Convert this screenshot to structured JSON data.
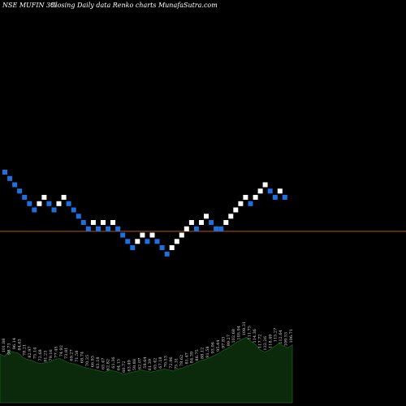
{
  "header": {
    "title": "NSE MUFIN  3%",
    "subtitle": "Closing Daily data  Renko  charts MunafaSutra.com"
  },
  "colors": {
    "background": "#000000",
    "up_brick": "#ffffff",
    "down_brick": "#1e6fe0",
    "reference_line": "#b8541a",
    "volume_fill": "#0b2a0b",
    "volume_line": "#1a5a1a"
  },
  "chart_data": {
    "type": "renko",
    "brick_size_percent": 3,
    "bricks": [
      {
        "dir": "down",
        "level": 25
      },
      {
        "dir": "down",
        "level": 24
      },
      {
        "dir": "down",
        "level": 23
      },
      {
        "dir": "down",
        "level": 22
      },
      {
        "dir": "down",
        "level": 21
      },
      {
        "dir": "down",
        "level": 20
      },
      {
        "dir": "down",
        "level": 19
      },
      {
        "dir": "up",
        "level": 20
      },
      {
        "dir": "up",
        "level": 21
      },
      {
        "dir": "down",
        "level": 20
      },
      {
        "dir": "down",
        "level": 19
      },
      {
        "dir": "up",
        "level": 20
      },
      {
        "dir": "up",
        "level": 21
      },
      {
        "dir": "down",
        "level": 20
      },
      {
        "dir": "down",
        "level": 19
      },
      {
        "dir": "down",
        "level": 18
      },
      {
        "dir": "down",
        "level": 17
      },
      {
        "dir": "down",
        "level": 16
      },
      {
        "dir": "up",
        "level": 17
      },
      {
        "dir": "down",
        "level": 16
      },
      {
        "dir": "up",
        "level": 17
      },
      {
        "dir": "down",
        "level": 16
      },
      {
        "dir": "up",
        "level": 17
      },
      {
        "dir": "down",
        "level": 16
      },
      {
        "dir": "down",
        "level": 15
      },
      {
        "dir": "down",
        "level": 14
      },
      {
        "dir": "down",
        "level": 13
      },
      {
        "dir": "up",
        "level": 14
      },
      {
        "dir": "up",
        "level": 15
      },
      {
        "dir": "down",
        "level": 14
      },
      {
        "dir": "up",
        "level": 15
      },
      {
        "dir": "down",
        "level": 14
      },
      {
        "dir": "down",
        "level": 13
      },
      {
        "dir": "down",
        "level": 12
      },
      {
        "dir": "up",
        "level": 13
      },
      {
        "dir": "up",
        "level": 14
      },
      {
        "dir": "up",
        "level": 15
      },
      {
        "dir": "up",
        "level": 16
      },
      {
        "dir": "up",
        "level": 17
      },
      {
        "dir": "down",
        "level": 16
      },
      {
        "dir": "up",
        "level": 17
      },
      {
        "dir": "up",
        "level": 18
      },
      {
        "dir": "down",
        "level": 17
      },
      {
        "dir": "down",
        "level": 16
      },
      {
        "dir": "down",
        "level": 16
      },
      {
        "dir": "up",
        "level": 17
      },
      {
        "dir": "up",
        "level": 18
      },
      {
        "dir": "up",
        "level": 19
      },
      {
        "dir": "up",
        "level": 20
      },
      {
        "dir": "up",
        "level": 21
      },
      {
        "dir": "down",
        "level": 20
      },
      {
        "dir": "up",
        "level": 21
      },
      {
        "dir": "up",
        "level": 22
      },
      {
        "dir": "up",
        "level": 23
      },
      {
        "dir": "down",
        "level": 22
      },
      {
        "dir": "down",
        "level": 21
      },
      {
        "dir": "up",
        "level": 22
      },
      {
        "dir": "down",
        "level": 21
      }
    ],
    "reference_line_level": 15.6,
    "volume": [
      46,
      44,
      49,
      48,
      47,
      43,
      41,
      40,
      38,
      37,
      38,
      39,
      41,
      42,
      40,
      38,
      37,
      36,
      34,
      33,
      32,
      31,
      30,
      29,
      31,
      30,
      29,
      27,
      28,
      29,
      30,
      31,
      30,
      29,
      30,
      31,
      32,
      31,
      30,
      32,
      33,
      35,
      36,
      38,
      40,
      41,
      43,
      45,
      47,
      50,
      52,
      55,
      58,
      60,
      62,
      58,
      55,
      50,
      48,
      50,
      53,
      56,
      54,
      52,
      55
    ],
    "volume_labels": [
      "101.88",
      "98.73",
      "96.14",
      "84.63",
      "78.21",
      "82.97",
      "75.14",
      "72.68",
      "81.23",
      "79.16",
      "77.45",
      "74.92",
      "73.81",
      "69.27",
      "71.58",
      "68.74",
      "70.25",
      "66.93",
      "63.18",
      "65.47",
      "62.82",
      "61.36",
      "64.15",
      "60.72",
      "63.49",
      "59.88",
      "62.07",
      "58.64",
      "61.39",
      "65.42",
      "67.18",
      "70.53",
      "72.96",
      "75.31",
      "78.62",
      "81.47",
      "84.39",
      "86.75",
      "88.12",
      "91.58",
      "93.06",
      "95.44",
      "97.83",
      "99.27",
      "102.68",
      "105.94",
      "108.31",
      "111.75",
      "114.36",
      "117.72",
      "122.26",
      "118.49",
      "115.27",
      "112.64",
      "109.53",
      "106.71"
    ]
  }
}
